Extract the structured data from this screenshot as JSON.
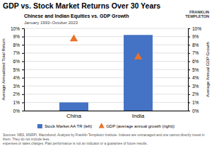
{
  "chart_data": {
    "type": "bar",
    "title": "GDP vs. Stock Market Returns Over 30 Years",
    "subtitle": "Chinese and Indian Equities vs. GDP Growth",
    "annotations": [
      "January 1993–October 2023",
      "FRANKLIN\nTEMPLETON",
      "Sources: NBS, MSRPI, Macrobond. Analysis by Franklin Templeton Institute. Indexes are unmanaged and one cannot directly invest in them. They do not include fees,\nexpenses or sales charges. Past performance is not an indicator or a guarantee of future results."
    ],
    "categories": [
      "China",
      "India"
    ],
    "series": [
      {
        "name": "Stock Market AA TR (left)",
        "type": "bar",
        "color": "#4472C4",
        "values": [
          1.0,
          9.2
        ]
      },
      {
        "name": "GDP (average annual growth (right))",
        "type": "scatter",
        "marker": "triangle",
        "color": "#E8722A",
        "axis": "y2",
        "values": [
          8.7,
          6.5
        ]
      }
    ],
    "ylabel": "Average Annualized Total Return",
    "y2label": "Average Annual GDP Growth",
    "ylim": [
      0,
      10
    ],
    "yticks": [
      {
        "value": 0,
        "label": "0%"
      },
      {
        "value": 1,
        "label": "1%"
      },
      {
        "value": 2,
        "label": "2%"
      },
      {
        "value": 3,
        "label": "3%"
      },
      {
        "value": 4,
        "label": "4%"
      },
      {
        "value": 5,
        "label": "5%"
      },
      {
        "value": 6,
        "label": "6%"
      },
      {
        "value": 7,
        "label": "7%"
      },
      {
        "value": 8,
        "label": "8%"
      },
      {
        "value": 9,
        "label": "9%"
      },
      {
        "value": 10,
        "label": "10%"
      }
    ],
    "y2lim": [
      0,
      10
    ],
    "y2ticks": [
      {
        "value": 0,
        "label": "0%"
      },
      {
        "value": 1,
        "label": "1%"
      },
      {
        "value": 2,
        "label": "2%"
      },
      {
        "value": 3,
        "label": "3%"
      },
      {
        "value": 4,
        "label": "4%"
      },
      {
        "value": 5,
        "label": "5%"
      },
      {
        "value": 6,
        "label": "6%"
      },
      {
        "value": 7,
        "label": "7%"
      },
      {
        "value": 8,
        "label": "8%"
      },
      {
        "value": 9,
        "label": "9%"
      },
      {
        "value": 10,
        "label": "10%"
      }
    ],
    "grid": true,
    "legend": "bottom"
  }
}
